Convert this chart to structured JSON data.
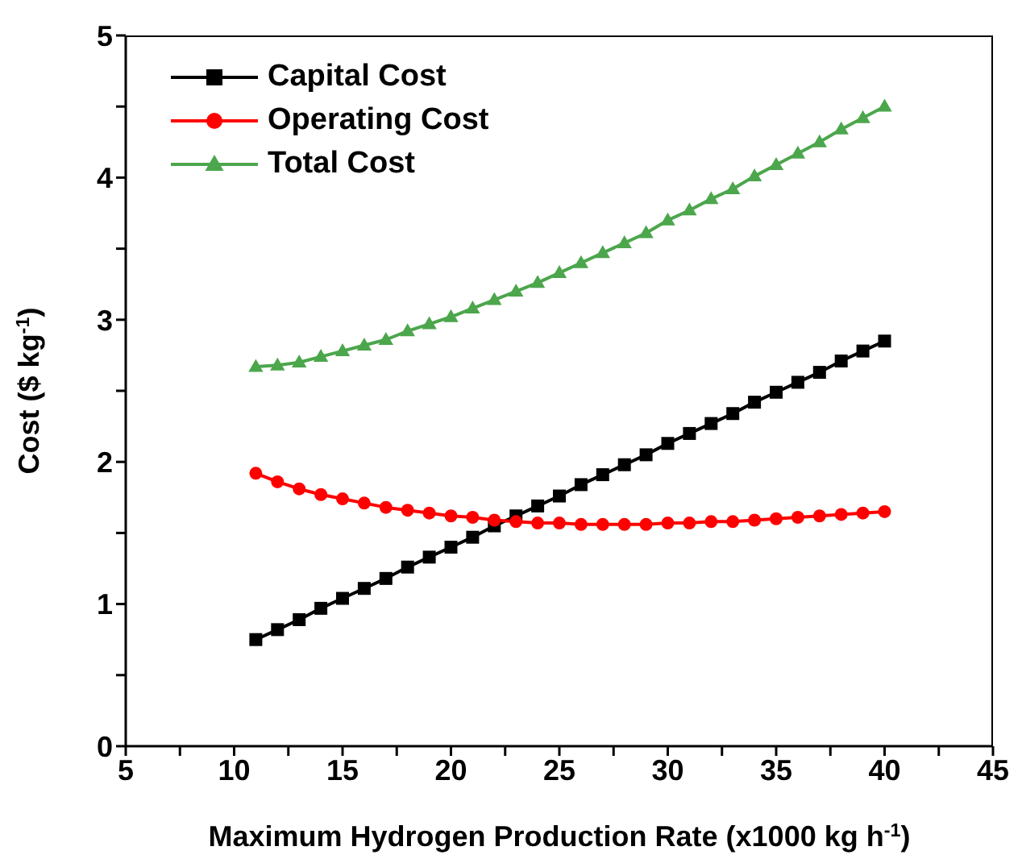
{
  "chart_data": {
    "type": "line",
    "xlabel": "Maximum Hydrogen Production Rate (x1000 kg h$^{-1}$)",
    "ylabel": "Cost ($ kg$^{-1}$)",
    "x": [
      11,
      12,
      13,
      14,
      15,
      16,
      17,
      18,
      19,
      20,
      21,
      22,
      23,
      24,
      25,
      26,
      27,
      28,
      29,
      30,
      31,
      32,
      33,
      34,
      35,
      36,
      37,
      38,
      39,
      40
    ],
    "series": [
      {
        "name": "Capital Cost",
        "color": "#000000",
        "marker": "square",
        "values": [
          0.75,
          0.82,
          0.89,
          0.97,
          1.04,
          1.11,
          1.18,
          1.26,
          1.33,
          1.4,
          1.47,
          1.55,
          1.62,
          1.69,
          1.76,
          1.84,
          1.91,
          1.98,
          2.05,
          2.13,
          2.2,
          2.27,
          2.34,
          2.42,
          2.49,
          2.56,
          2.63,
          2.71,
          2.78,
          2.85
        ]
      },
      {
        "name": "Operating Cost",
        "color": "#ff0000",
        "marker": "circle",
        "values": [
          1.92,
          1.86,
          1.81,
          1.77,
          1.74,
          1.71,
          1.68,
          1.66,
          1.64,
          1.62,
          1.61,
          1.59,
          1.58,
          1.57,
          1.57,
          1.56,
          1.56,
          1.56,
          1.56,
          1.57,
          1.57,
          1.58,
          1.58,
          1.59,
          1.6,
          1.61,
          1.62,
          1.63,
          1.64,
          1.65
        ]
      },
      {
        "name": "Total Cost",
        "color": "#4ca64c",
        "marker": "triangle",
        "values": [
          2.67,
          2.68,
          2.7,
          2.74,
          2.78,
          2.82,
          2.86,
          2.92,
          2.97,
          3.02,
          3.08,
          3.14,
          3.2,
          3.26,
          3.33,
          3.4,
          3.47,
          3.54,
          3.61,
          3.7,
          3.77,
          3.85,
          3.92,
          4.01,
          4.09,
          4.17,
          4.25,
          4.34,
          4.42,
          4.5
        ]
      }
    ],
    "xlim": [
      5,
      45
    ],
    "xticks": [
      5,
      {
        "value": 7.5,
        "label": null
      },
      10,
      {
        "value": 12.5,
        "label": null
      },
      15,
      {
        "value": 17.5,
        "label": null
      },
      20,
      {
        "value": 22.5,
        "label": null
      },
      25,
      {
        "value": 27.5,
        "label": null
      },
      30,
      {
        "value": 32.5,
        "label": null
      },
      35,
      {
        "value": 37.5,
        "label": null
      },
      40,
      {
        "value": 42.5,
        "label": null
      },
      45
    ],
    "ylim": [
      0,
      5
    ],
    "yticks": [
      0,
      {
        "value": 0.5,
        "label": null
      },
      1,
      {
        "value": 1.5,
        "label": null
      },
      2,
      {
        "value": 2.5,
        "label": null
      },
      3,
      {
        "value": 3.5,
        "label": null
      },
      4,
      {
        "value": 4.5,
        "label": null
      },
      5
    ],
    "grid": false,
    "legend": "top left",
    "line_style": "solid"
  }
}
